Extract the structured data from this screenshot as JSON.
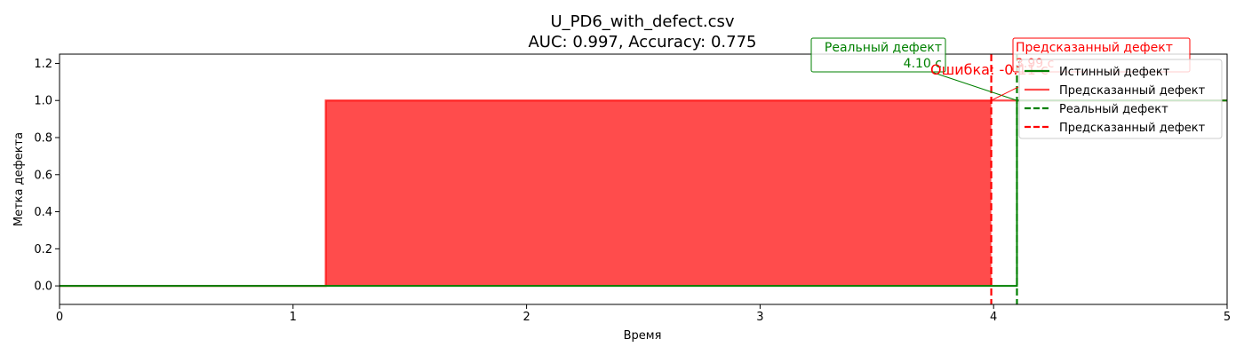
{
  "chart_data": {
    "type": "line",
    "title": "U_PD6_with_defect.csv",
    "subtitle": "AUC: 0.997, Accuracy: 0.775",
    "xlabel": "Время",
    "ylabel": "Метка дефекта",
    "xlim": [
      0,
      5
    ],
    "ylim": [
      -0.1,
      1.25
    ],
    "x_ticks": [
      0,
      1,
      2,
      3,
      4,
      5
    ],
    "x_tick_labels": [
      "0",
      "1",
      "2",
      "3",
      "4",
      "5"
    ],
    "y_ticks": [
      0.0,
      0.2,
      0.4,
      0.6,
      0.8,
      1.0,
      1.2
    ],
    "y_tick_labels": [
      "0.0",
      "0.2",
      "0.4",
      "0.6",
      "0.8",
      "1.0",
      "1.2"
    ],
    "grid": false,
    "legend_position": "upper right",
    "series": [
      {
        "name": "Истинный дефект",
        "kind": "step",
        "color": "#008000",
        "points": [
          [
            0,
            0
          ],
          [
            4.1,
            0
          ],
          [
            4.1,
            1
          ],
          [
            5,
            1
          ]
        ]
      },
      {
        "name": "Предсказанный дефект",
        "kind": "step",
        "color": "#ff0000",
        "opacity": 0.7,
        "points": [
          [
            0,
            0
          ],
          [
            1.14,
            0
          ],
          [
            1.14,
            1
          ],
          [
            5,
            1
          ]
        ],
        "dense_toggle_region": [
          1.14,
          3.99
        ]
      }
    ],
    "vlines": [
      {
        "name": "Реальный дефект",
        "x": 4.1,
        "color": "#008000",
        "dash": true
      },
      {
        "name": "Предсказанный дефект",
        "x": 3.99,
        "color": "#ff0000",
        "dash": true
      }
    ],
    "annotations": [
      {
        "id": "real",
        "line1": "Реальный дефект",
        "line2": "4.10 с",
        "color": "#008000",
        "point": [
          4.1,
          1.0
        ]
      },
      {
        "id": "pred",
        "line1": "Предсказанный дефект",
        "line2": "3.99 с",
        "color": "#ff0000",
        "point": [
          3.99,
          1.0
        ]
      },
      {
        "id": "error",
        "text": "Ошибка: -0.11 с",
        "color": "#ff0000"
      }
    ]
  }
}
